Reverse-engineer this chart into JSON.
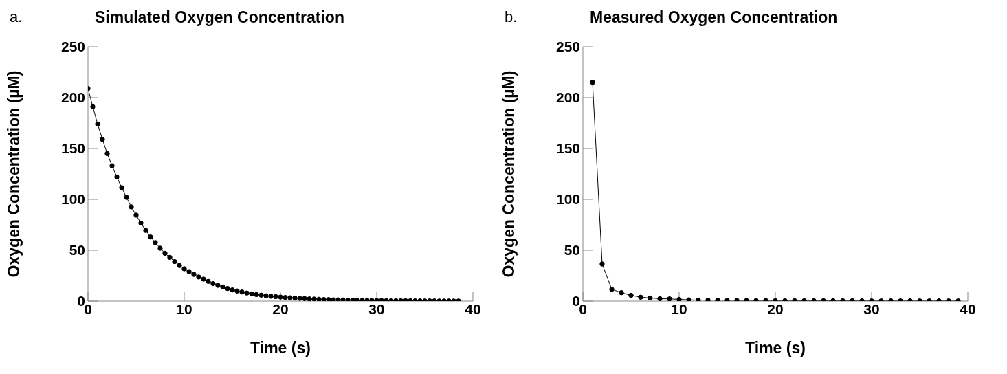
{
  "chart_data": [
    {
      "type": "line",
      "title": "Simulated Oxygen Concentration",
      "xlabel": "Time (s)",
      "ylabel": "Oxygen Concentration (µM)",
      "annotations": [
        "a."
      ],
      "marker": "circle",
      "line_style": "solid",
      "xlim": [
        0,
        40
      ],
      "xticks": [
        0,
        10,
        20,
        30,
        40
      ],
      "ylim": [
        0,
        250
      ],
      "yticks": [
        0,
        50,
        100,
        150,
        200,
        250
      ],
      "x": [
        0,
        0.5,
        1,
        1.5,
        2,
        2.5,
        3,
        3.5,
        4,
        4.5,
        5,
        5.5,
        6,
        6.5,
        7,
        7.5,
        8,
        8.5,
        9,
        9.5,
        10,
        10.5,
        11,
        11.5,
        12,
        12.5,
        13,
        13.5,
        14,
        14.5,
        15,
        15.5,
        16,
        16.5,
        17,
        17.5,
        18,
        18.5,
        19,
        19.5,
        20,
        20.5,
        21,
        21.5,
        22,
        22.5,
        23,
        23.5,
        24,
        24.5,
        25,
        25.5,
        26,
        26.5,
        27,
        27.5,
        28,
        28.5,
        29,
        29.5,
        30,
        30.5,
        31,
        31.5,
        32,
        32.5,
        33,
        33.5,
        34,
        34.5,
        35,
        35.5,
        36,
        36.5,
        37,
        37.5,
        38,
        38.5
      ],
      "series": [
        {
          "color": "#000000",
          "values": [
            209,
            191,
            174,
            159,
            145,
            133,
            122,
            111.5,
            102,
            92.6,
            84.5,
            76.7,
            69.5,
            63,
            57.5,
            52,
            47,
            43,
            38.8,
            35,
            31.8,
            29,
            26.3,
            23.7,
            21.6,
            19.4,
            17.2,
            15.5,
            13.9,
            12.4,
            11,
            10,
            9,
            8,
            7.2,
            6.5,
            5.9,
            5.2,
            4.8,
            4.4,
            4,
            3.6,
            3.3,
            3,
            2.7,
            2.5,
            2.2,
            2,
            1.8,
            1.6,
            1.5,
            1.3,
            1.2,
            1.1,
            1,
            0.9,
            0.8,
            0.7,
            0.7,
            0.6,
            0.5,
            0.5,
            0.4,
            0.4,
            0.4,
            0.3,
            0.3,
            0.3,
            0.2,
            0.2,
            0.2,
            0.2,
            0.2,
            0.1,
            0.1,
            0.1,
            0.1,
            0.1
          ]
        }
      ]
    },
    {
      "type": "line",
      "title": "Measured Oxygen Concentration",
      "xlabel": "Time (s)",
      "ylabel": "Oxygen Concentration (µM)",
      "annotations": [
        "b."
      ],
      "marker": "circle",
      "line_style": "solid",
      "xlim": [
        0,
        40
      ],
      "xticks": [
        0,
        10,
        20,
        30,
        40
      ],
      "ylim": [
        0,
        250
      ],
      "yticks": [
        0,
        50,
        100,
        150,
        200,
        250
      ],
      "x": [
        1,
        2,
        3,
        4,
        5,
        6,
        7,
        8,
        9,
        10,
        11,
        12,
        13,
        14,
        15,
        16,
        17,
        18,
        19,
        20,
        21,
        22,
        23,
        24,
        25,
        26,
        27,
        28,
        29,
        30,
        31,
        32,
        33,
        34,
        35,
        36,
        37,
        38,
        39
      ],
      "series": [
        {
          "color": "#000000",
          "values": [
            215,
            36.5,
            11.6,
            8.3,
            5.7,
            3.9,
            3.1,
            2.4,
            2.2,
            1.7,
            1.3,
            1,
            0.9,
            0.8,
            0.7,
            0.6,
            0.5,
            0.5,
            0.5,
            0.4,
            0.4,
            0.4,
            0.3,
            0.3,
            0.3,
            0.3,
            0.3,
            0.3,
            0.2,
            0.2,
            0.2,
            0.2,
            0.2,
            0.2,
            0.2,
            0.2,
            0.2,
            0.2,
            0.2
          ]
        }
      ]
    }
  ]
}
